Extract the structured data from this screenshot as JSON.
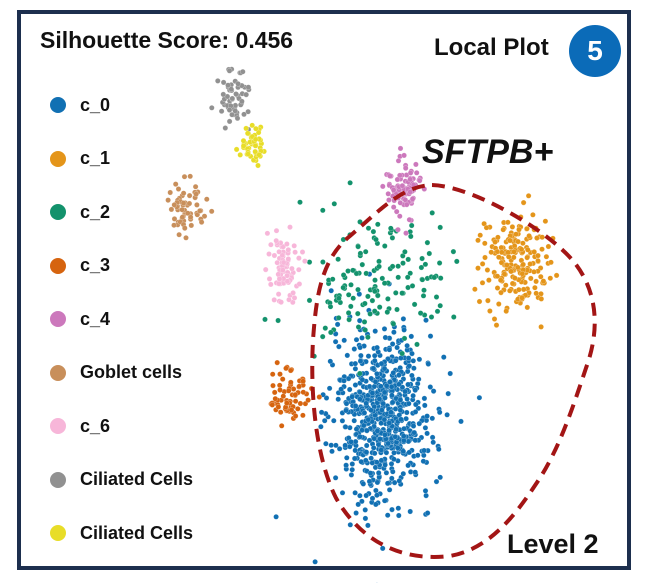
{
  "header": {
    "score_text": "Silhouette Score: 0.456",
    "local_plot_label": "Local Plot",
    "badge_number": "5"
  },
  "annotation": {
    "cluster_label": "SFTPB+",
    "level_label": "Level 2",
    "outline_color": "#a31515"
  },
  "chart_data": {
    "type": "scatter",
    "title": "",
    "xlabel": "",
    "ylabel": "",
    "axes_shown": false,
    "grid": false,
    "legend_position": "left",
    "series": [
      {
        "name": "c_0",
        "color": "#1170b3",
        "approx_points": 700,
        "cx": 0.5,
        "cy": 0.3,
        "sx": 0.06,
        "sy": 0.09
      },
      {
        "name": "c_1",
        "color": "#e4951a",
        "approx_points": 200,
        "cx": 0.82,
        "cy": 0.62,
        "sx": 0.04,
        "sy": 0.05
      },
      {
        "name": "c_2",
        "color": "#13926c",
        "approx_points": 150,
        "cx": 0.48,
        "cy": 0.58,
        "sx": 0.09,
        "sy": 0.07
      },
      {
        "name": "c_3",
        "color": "#d6640f",
        "approx_points": 70,
        "cx": 0.28,
        "cy": 0.34,
        "sx": 0.025,
        "sy": 0.03
      },
      {
        "name": "c_4",
        "color": "#cc78bc",
        "approx_points": 90,
        "cx": 0.55,
        "cy": 0.78,
        "sx": 0.02,
        "sy": 0.03
      },
      {
        "name": "Goblet cells",
        "color": "#c88f5b",
        "approx_points": 60,
        "cx": 0.03,
        "cy": 0.74,
        "sx": 0.02,
        "sy": 0.03
      },
      {
        "name": "c_6",
        "color": "#f7b6d9",
        "approx_points": 80,
        "cx": 0.26,
        "cy": 0.62,
        "sx": 0.02,
        "sy": 0.04
      },
      {
        "name": "Ciliated Cells",
        "color": "#919191",
        "approx_points": 60,
        "cx": 0.14,
        "cy": 0.97,
        "sx": 0.02,
        "sy": 0.03
      },
      {
        "name": "Ciliated Cells",
        "color": "#e8dd28",
        "approx_points": 50,
        "cx": 0.19,
        "cy": 0.87,
        "sx": 0.02,
        "sy": 0.02
      }
    ]
  }
}
